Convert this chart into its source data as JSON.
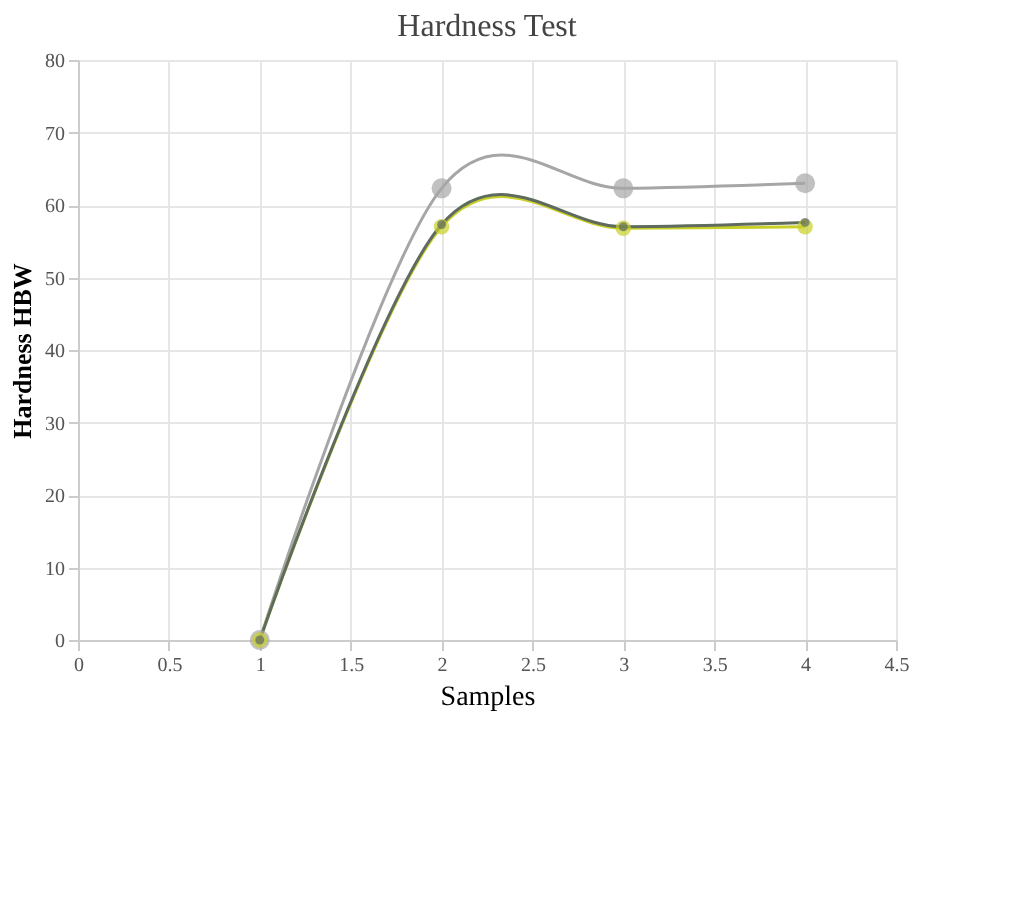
{
  "chart_data": {
    "type": "line",
    "title": "Hardness Test",
    "xlabel": "Samples",
    "ylabel": "Hardness HBW",
    "x": [
      1,
      2,
      3,
      4
    ],
    "series": [
      {
        "color": "#a6a6a6",
        "values": [
          0,
          62.3,
          62.3,
          63
        ]
      },
      {
        "color": "#c8d028",
        "values": [
          0,
          57,
          56.8,
          57
        ]
      },
      {
        "color": "#5f6b5f",
        "values": [
          0,
          57.3,
          57,
          57.6
        ]
      }
    ],
    "xlim": [
      0,
      4.5
    ],
    "xticks": [
      0,
      0.5,
      1,
      1.5,
      2,
      2.5,
      3,
      3.5,
      4,
      4.5
    ],
    "ylim": [
      0,
      80
    ],
    "yticks": [
      0,
      10,
      20,
      30,
      40,
      50,
      60,
      70,
      80
    ],
    "grid": true,
    "marker": "circle",
    "line_style": "solid"
  }
}
